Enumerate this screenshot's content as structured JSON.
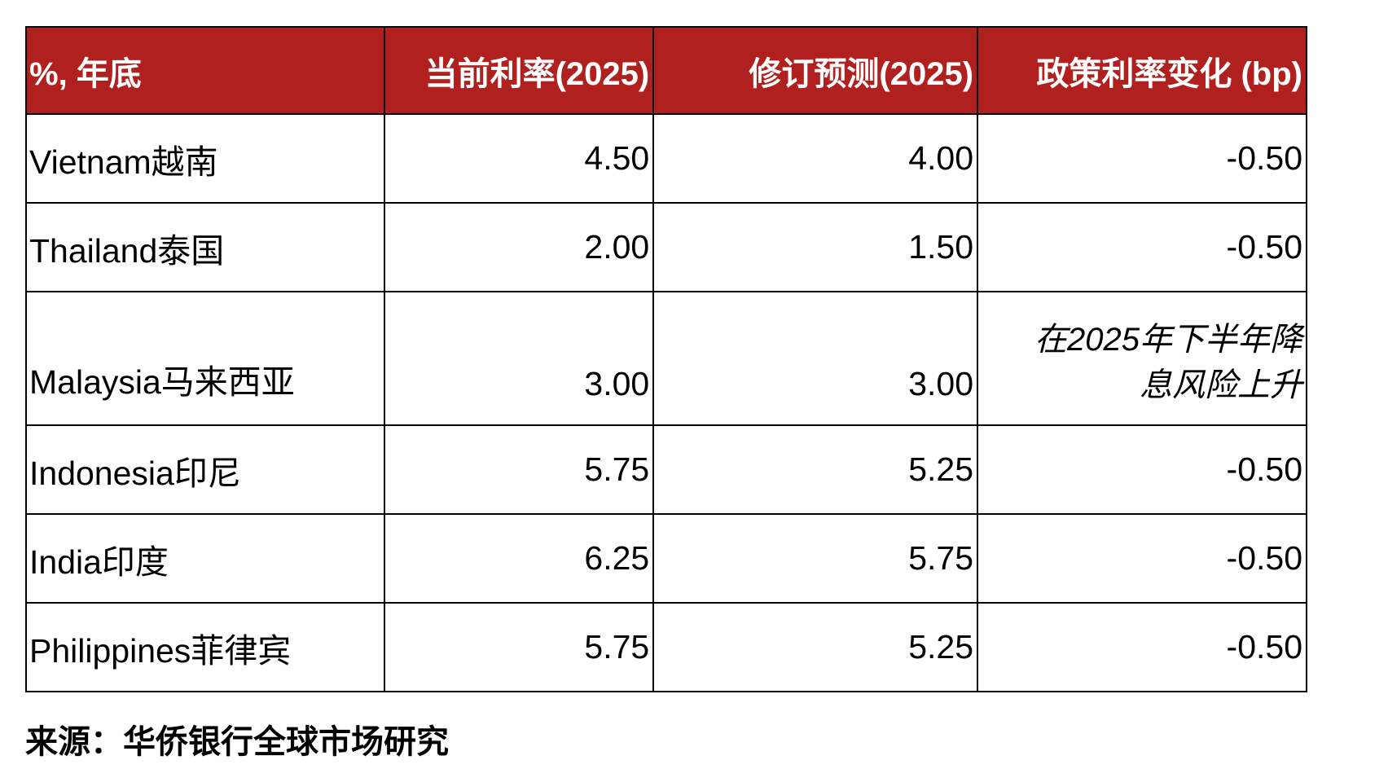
{
  "table": {
    "headers": [
      "%, 年底",
      "当前利率(2025)",
      "修订预测(2025)",
      "政策利率变化 (bp)"
    ],
    "rows": [
      {
        "country": "Vietnam越南",
        "current": "4.50",
        "revised": "4.00",
        "change": "-0.50"
      },
      {
        "country": "Thailand泰国",
        "current": "2.00",
        "revised": "1.50",
        "change": "-0.50"
      },
      {
        "country": "Malaysia马来西亚",
        "current": "3.00",
        "revised": "3.00",
        "change_note_line1": "在2025年下半年降",
        "change_note_line2": "息风险上升"
      },
      {
        "country": "Indonesia印尼",
        "current": "5.75",
        "revised": "5.25",
        "change": "-0.50"
      },
      {
        "country": "India印度",
        "current": "6.25",
        "revised": "5.75",
        "change": "-0.50"
      },
      {
        "country": "Philippines菲律宾",
        "current": "5.75",
        "revised": "5.25",
        "change": "-0.50"
      }
    ]
  },
  "source": "来源：华侨银行全球市场研究",
  "colors": {
    "header_background": "#b0201e",
    "header_text": "#ffffff",
    "border": "#000000"
  }
}
